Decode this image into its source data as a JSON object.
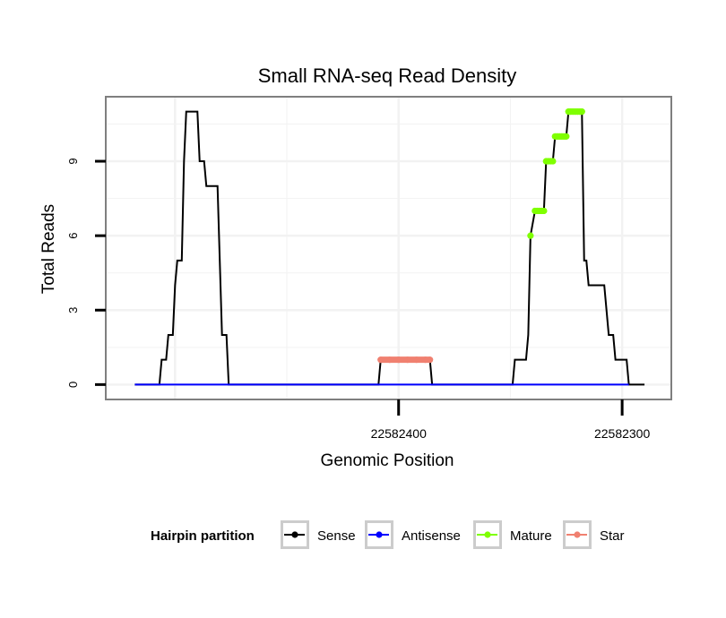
{
  "chart_data": {
    "type": "line",
    "title": "Small RNA-seq Read Density",
    "xlabel": "Genomic Position",
    "ylabel": "Total Reads",
    "x_reversed": true,
    "xlim": [
      22582531,
      22582278
    ],
    "ylim": [
      -0.6,
      11.6
    ],
    "x_ticks": [
      22582400,
      22582300
    ],
    "x_tick_labels": [
      "22582400",
      "22582300"
    ],
    "y_ticks": [
      0,
      3,
      6,
      9
    ],
    "y_tick_labels": [
      "0",
      "3",
      "6",
      "9"
    ],
    "grid": true,
    "legend": {
      "title": "Hairpin partition",
      "position": "bottom",
      "entries": [
        "Sense",
        "Antisense",
        "Mature",
        "Star"
      ]
    },
    "colors": {
      "Sense": "#000000",
      "Antisense": "#0000ff",
      "Mature": "#7fff00",
      "Star": "#f08070",
      "grid": "#f2f2f2",
      "panel_border": "#7f7f7f"
    },
    "series": [
      {
        "name": "Sense",
        "points": [
          [
            22582518,
            0
          ],
          [
            22582507,
            0
          ],
          [
            22582506,
            1
          ],
          [
            22582504,
            1
          ],
          [
            22582503,
            2
          ],
          [
            22582501,
            2
          ],
          [
            22582500,
            4
          ],
          [
            22582499,
            5
          ],
          [
            22582497,
            5
          ],
          [
            22582496,
            9
          ],
          [
            22582495,
            11
          ],
          [
            22582490,
            11
          ],
          [
            22582489,
            9
          ],
          [
            22582487,
            9
          ],
          [
            22582486,
            8
          ],
          [
            22582481,
            8
          ],
          [
            22582479,
            2
          ],
          [
            22582477,
            2
          ],
          [
            22582476,
            0
          ],
          [
            22582409,
            0
          ],
          [
            22582408,
            1
          ],
          [
            22582386,
            1
          ],
          [
            22582385,
            0
          ],
          [
            22582349,
            0
          ],
          [
            22582348,
            1
          ],
          [
            22582343,
            1
          ],
          [
            22582342,
            2
          ],
          [
            22582341,
            6
          ],
          [
            22582339,
            7
          ],
          [
            22582335,
            7
          ],
          [
            22582334,
            9
          ],
          [
            22582331,
            9
          ],
          [
            22582330,
            10
          ],
          [
            22582325,
            10
          ],
          [
            22582324,
            11
          ],
          [
            22582318,
            11
          ],
          [
            22582317,
            5
          ],
          [
            22582316,
            5
          ],
          [
            22582315,
            4
          ],
          [
            22582308,
            4
          ],
          [
            22582306,
            2
          ],
          [
            22582304,
            2
          ],
          [
            22582303,
            1
          ],
          [
            22582298,
            1
          ],
          [
            22582297,
            0
          ],
          [
            22582290,
            0
          ]
        ]
      },
      {
        "name": "Antisense",
        "points": [
          [
            22582518,
            0
          ],
          [
            22582297,
            0
          ]
        ]
      },
      {
        "name": "Mature",
        "points": [
          [
            22582341,
            6
          ],
          [
            22582339,
            7
          ],
          [
            22582338,
            7
          ],
          [
            22582337,
            7
          ],
          [
            22582336,
            7
          ],
          [
            22582335,
            7
          ],
          [
            22582334,
            9
          ],
          [
            22582333,
            9
          ],
          [
            22582332,
            9
          ],
          [
            22582331,
            9
          ],
          [
            22582330,
            10
          ],
          [
            22582329,
            10
          ],
          [
            22582328,
            10
          ],
          [
            22582327,
            10
          ],
          [
            22582326,
            10
          ],
          [
            22582325,
            10
          ],
          [
            22582324,
            11
          ],
          [
            22582323,
            11
          ],
          [
            22582322,
            11
          ],
          [
            22582321,
            11
          ],
          [
            22582320,
            11
          ],
          [
            22582319,
            11
          ],
          [
            22582318,
            11
          ]
        ],
        "segments": [
          [
            [
              22582339,
              7
            ],
            [
              22582335,
              7
            ]
          ],
          [
            [
              22582334,
              9
            ],
            [
              22582331,
              9
            ]
          ],
          [
            [
              22582330,
              10
            ],
            [
              22582325,
              10
            ]
          ],
          [
            [
              22582324,
              11
            ],
            [
              22582318,
              11
            ]
          ]
        ]
      },
      {
        "name": "Star",
        "points": [
          [
            22582408,
            1
          ],
          [
            22582404,
            1
          ],
          [
            22582400,
            1
          ],
          [
            22582396,
            1
          ],
          [
            22582392,
            1
          ],
          [
            22582388,
            1
          ],
          [
            22582386,
            1
          ]
        ],
        "segments": [
          [
            [
              22582408,
              1
            ],
            [
              22582386,
              1
            ]
          ]
        ]
      }
    ]
  }
}
